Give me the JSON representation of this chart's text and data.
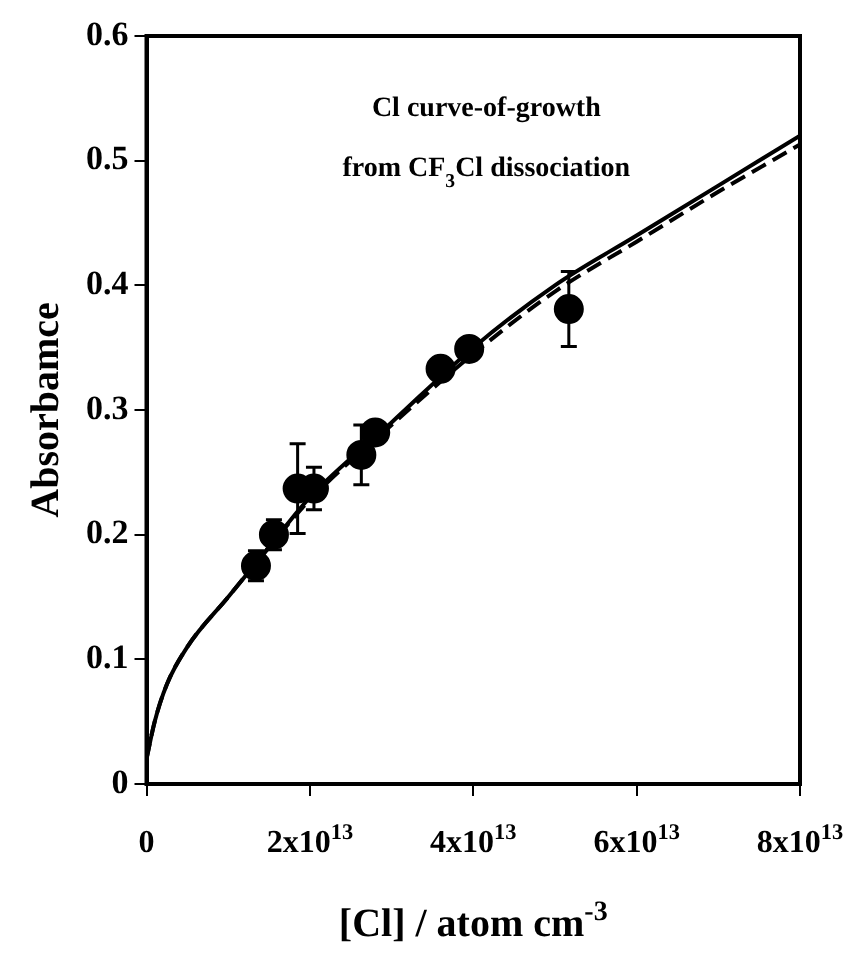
{
  "chart_data": {
    "type": "scatter",
    "xlabel": "[Cl] / atom cm$^{-3}$",
    "ylabel": "Absorbamce",
    "annotations": [
      "Cl curve-of-growth",
      "from CF$_{3}$Cl dissociation"
    ],
    "xlim": [
      0,
      80000000000000.0
    ],
    "xticks": [
      0,
      {
        "value": 20000000000000.0,
        "label": "2x10$^{13}$"
      },
      {
        "value": 40000000000000.0,
        "label": "4x10$^{13}$"
      },
      {
        "value": 60000000000000.0,
        "label": "6x10$^{13}$"
      },
      {
        "value": 80000000000000.0,
        "label": "8x10$^{13}$"
      }
    ],
    "ylim": [
      0,
      0.6
    ],
    "yticks": [
      0,
      0.1,
      0.2,
      0.3,
      0.4,
      0.5,
      0.6
    ],
    "grid": false,
    "legend": false,
    "series": [
      {
        "color": "#000000",
        "marker": "circle",
        "x": [
          13400000000000.0,
          15600000000000.0,
          18500000000000.0,
          20500000000000.0,
          26300000000000.0,
          28000000000000.0,
          36000000000000.0,
          39500000000000.0,
          51700000000000.0
        ],
        "values": [
          0.175,
          0.2,
          0.237,
          0.237,
          0.264,
          0.282,
          0.333,
          0.349,
          0.381
        ],
        "errors": [
          0.012,
          0.012,
          0.036,
          0.017,
          0.024,
          null,
          null,
          null,
          0.03
        ]
      },
      {
        "type": "line",
        "color": "#000000",
        "marker": "none",
        "line_style": "solid",
        "x": [
          0,
          1000000000000.0,
          2500000000000.0,
          5000000000000.0,
          10000000000000.0,
          15000000000000.0,
          20000000000000.0,
          30000000000000.0,
          40000000000000.0,
          50000000000000.0,
          60000000000000.0,
          70000000000000.0,
          80000000000000.0
        ],
        "values": [
          0.02,
          0.05,
          0.08,
          0.11,
          0.15,
          0.19,
          0.23,
          0.29,
          0.35,
          0.4,
          0.44,
          0.48,
          0.52
        ]
      },
      {
        "type": "line",
        "color": "#000000",
        "marker": "none",
        "line_style": "dashed",
        "x": [
          0,
          1000000000000.0,
          2500000000000.0,
          5000000000000.0,
          10000000000000.0,
          15000000000000.0,
          20000000000000.0,
          30000000000000.0,
          40000000000000.0,
          50000000000000.0,
          60000000000000.0,
          70000000000000.0,
          80000000000000.0
        ],
        "values": [
          0.02,
          0.05,
          0.08,
          0.11,
          0.15,
          0.19,
          0.228,
          0.288,
          0.345,
          0.395,
          0.435,
          0.475,
          0.513
        ]
      }
    ]
  }
}
